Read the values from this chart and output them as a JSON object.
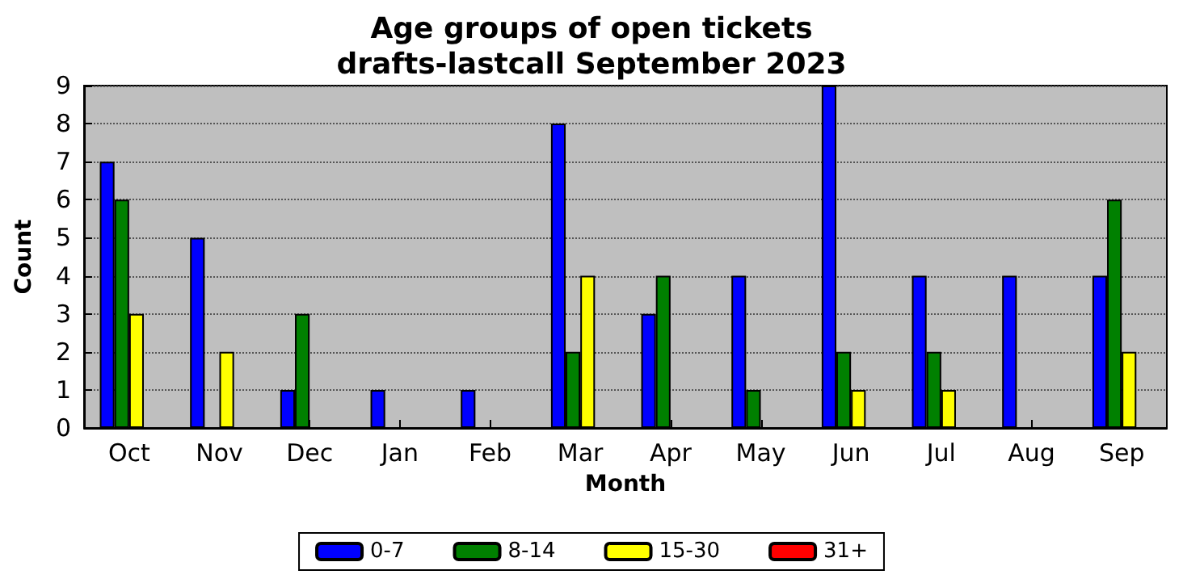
{
  "chart_data": {
    "type": "bar",
    "title": "Age groups of open tickets\ndrafts-lastcall September 2023",
    "xlabel": "Month",
    "ylabel": "Count",
    "categories": [
      "Oct",
      "Nov",
      "Dec",
      "Jan",
      "Feb",
      "Mar",
      "Apr",
      "May",
      "Jun",
      "Jul",
      "Aug",
      "Sep"
    ],
    "series": [
      {
        "name": "0-7",
        "color": "#0000ff",
        "values": [
          7,
          5,
          1,
          1,
          1,
          8,
          3,
          4,
          9,
          4,
          4,
          4
        ]
      },
      {
        "name": "8-14",
        "color": "#008000",
        "values": [
          6,
          0,
          3,
          0,
          0,
          2,
          4,
          1,
          2,
          2,
          0,
          6
        ]
      },
      {
        "name": "15-30",
        "color": "#ffff00",
        "values": [
          3,
          2,
          0,
          0,
          0,
          4,
          0,
          0,
          1,
          1,
          0,
          2
        ]
      },
      {
        "name": "31+",
        "color": "#ff0000",
        "values": [
          0,
          0,
          0,
          0,
          0,
          0,
          0,
          0,
          0,
          0,
          0,
          0
        ]
      }
    ],
    "ylim": [
      0,
      9
    ],
    "yticks": [
      0,
      1,
      2,
      3,
      4,
      5,
      6,
      7,
      8,
      9
    ],
    "grid": "y",
    "legend": "bottom"
  }
}
